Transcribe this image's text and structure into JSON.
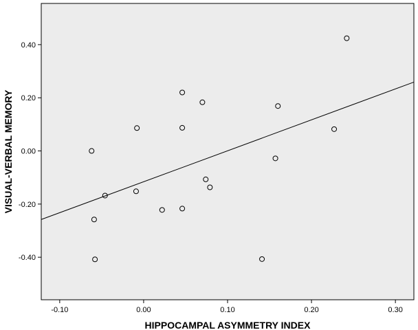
{
  "chart_data": {
    "type": "scatter",
    "xlabel": "HIPPOCAMPAL ASYMMETRY INDEX",
    "ylabel": "VISUAL-VERBAL MEMORY",
    "xlim": [
      -0.122,
      0.322
    ],
    "ylim": [
      -0.56,
      0.555
    ],
    "x_ticks": [
      -0.1,
      0.0,
      0.1,
      0.2,
      0.3
    ],
    "x_tick_labels": [
      "-0.10",
      "0.00",
      "0.10",
      "0.20",
      "0.30"
    ],
    "y_ticks": [
      -0.4,
      -0.2,
      0.0,
      0.2,
      0.4
    ],
    "y_tick_labels": [
      "-0.40",
      "-0.20",
      "0.00",
      "0.20",
      "0.40"
    ],
    "grid": false,
    "plot_background": "#ececec",
    "marker": "open-circle",
    "points": [
      {
        "x": -0.062,
        "y": 0.0
      },
      {
        "x": -0.059,
        "y": -0.258
      },
      {
        "x": -0.058,
        "y": -0.408
      },
      {
        "x": -0.046,
        "y": -0.168
      },
      {
        "x": -0.008,
        "y": 0.086
      },
      {
        "x": -0.009,
        "y": -0.152
      },
      {
        "x": 0.022,
        "y": -0.222
      },
      {
        "x": 0.046,
        "y": 0.22
      },
      {
        "x": 0.046,
        "y": 0.087
      },
      {
        "x": 0.046,
        "y": -0.217
      },
      {
        "x": 0.07,
        "y": 0.183
      },
      {
        "x": 0.074,
        "y": -0.107
      },
      {
        "x": 0.079,
        "y": -0.137
      },
      {
        "x": 0.141,
        "y": -0.407
      },
      {
        "x": 0.157,
        "y": -0.028
      },
      {
        "x": 0.16,
        "y": 0.169
      },
      {
        "x": 0.227,
        "y": 0.082
      },
      {
        "x": 0.242,
        "y": 0.424
      }
    ],
    "fit_line": {
      "x": [
        -0.122,
        0.322
      ],
      "y": [
        -0.258,
        0.259
      ]
    }
  }
}
